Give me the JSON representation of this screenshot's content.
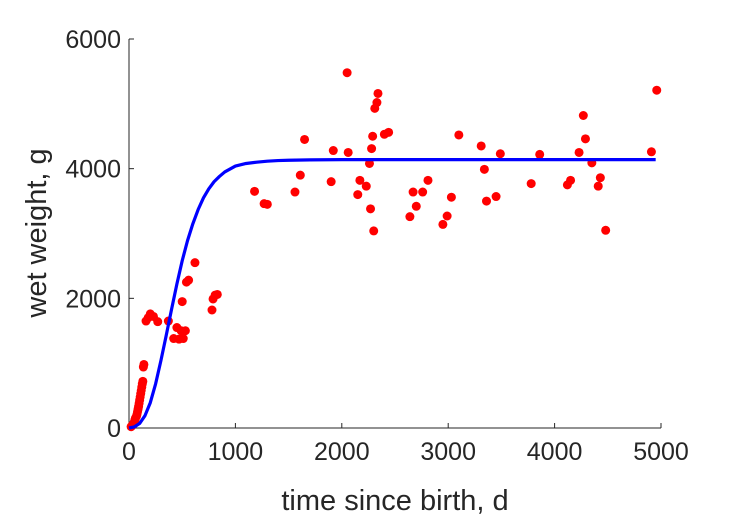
{
  "chart_data": {
    "type": "scatter",
    "title": "",
    "xlabel": "time since birth, d",
    "ylabel": "wet weight, g",
    "xlim": [
      0,
      5000
    ],
    "ylim": [
      0,
      6000
    ],
    "xticks": [
      0,
      1000,
      2000,
      3000,
      4000,
      5000
    ],
    "yticks": [
      0,
      2000,
      4000,
      6000
    ],
    "grid": false,
    "series": [
      {
        "kind": "points",
        "color": "#ff0000",
        "points": [
          [
            20,
            20
          ],
          [
            30,
            40
          ],
          [
            40,
            60
          ],
          [
            50,
            90
          ],
          [
            55,
            120
          ],
          [
            60,
            150
          ],
          [
            70,
            180
          ],
          [
            75,
            210
          ],
          [
            80,
            250
          ],
          [
            85,
            290
          ],
          [
            90,
            330
          ],
          [
            95,
            380
          ],
          [
            100,
            430
          ],
          [
            105,
            480
          ],
          [
            110,
            530
          ],
          [
            115,
            580
          ],
          [
            120,
            630
          ],
          [
            125,
            680
          ],
          [
            130,
            720
          ],
          [
            135,
            940
          ],
          [
            140,
            980
          ],
          [
            160,
            1650
          ],
          [
            180,
            1700
          ],
          [
            200,
            1760
          ],
          [
            230,
            1720
          ],
          [
            270,
            1640
          ],
          [
            370,
            1650
          ],
          [
            420,
            1380
          ],
          [
            450,
            1550
          ],
          [
            470,
            1370
          ],
          [
            490,
            1500
          ],
          [
            500,
            1950
          ],
          [
            510,
            1380
          ],
          [
            530,
            1500
          ],
          [
            540,
            2250
          ],
          [
            560,
            2280
          ],
          [
            620,
            2550
          ],
          [
            780,
            1820
          ],
          [
            790,
            1990
          ],
          [
            810,
            2050
          ],
          [
            830,
            2060
          ],
          [
            1180,
            3650
          ],
          [
            1270,
            3460
          ],
          [
            1300,
            3450
          ],
          [
            1560,
            3640
          ],
          [
            1610,
            3900
          ],
          [
            1650,
            4450
          ],
          [
            1900,
            3800
          ],
          [
            1920,
            4280
          ],
          [
            2050,
            5480
          ],
          [
            2060,
            4250
          ],
          [
            2150,
            3600
          ],
          [
            2170,
            3820
          ],
          [
            2230,
            3730
          ],
          [
            2260,
            4080
          ],
          [
            2270,
            3380
          ],
          [
            2280,
            4310
          ],
          [
            2290,
            4500
          ],
          [
            2300,
            3040
          ],
          [
            2310,
            4930
          ],
          [
            2330,
            5020
          ],
          [
            2340,
            5160
          ],
          [
            2400,
            4530
          ],
          [
            2440,
            4560
          ],
          [
            2640,
            3260
          ],
          [
            2670,
            3640
          ],
          [
            2700,
            3420
          ],
          [
            2760,
            3640
          ],
          [
            2810,
            3820
          ],
          [
            2950,
            3140
          ],
          [
            2990,
            3270
          ],
          [
            3030,
            3560
          ],
          [
            3100,
            4520
          ],
          [
            3310,
            4350
          ],
          [
            3340,
            3990
          ],
          [
            3360,
            3500
          ],
          [
            3450,
            3570
          ],
          [
            3490,
            4230
          ],
          [
            3780,
            3770
          ],
          [
            3860,
            4220
          ],
          [
            4120,
            3750
          ],
          [
            4150,
            3820
          ],
          [
            4230,
            4250
          ],
          [
            4270,
            4820
          ],
          [
            4290,
            4460
          ],
          [
            4350,
            4090
          ],
          [
            4410,
            3730
          ],
          [
            4430,
            3860
          ],
          [
            4480,
            3050
          ],
          [
            4910,
            4260
          ],
          [
            4960,
            5210
          ]
        ]
      },
      {
        "kind": "line",
        "color": "#0000ff",
        "points": [
          [
            0,
            0
          ],
          [
            50,
            17
          ],
          [
            100,
            70
          ],
          [
            150,
            190
          ],
          [
            200,
            390
          ],
          [
            250,
            680
          ],
          [
            300,
            1040
          ],
          [
            350,
            1430
          ],
          [
            400,
            1830
          ],
          [
            450,
            2220
          ],
          [
            500,
            2580
          ],
          [
            550,
            2890
          ],
          [
            600,
            3150
          ],
          [
            650,
            3370
          ],
          [
            700,
            3550
          ],
          [
            750,
            3690
          ],
          [
            800,
            3800
          ],
          [
            850,
            3880
          ],
          [
            900,
            3950
          ],
          [
            1000,
            4040
          ],
          [
            1100,
            4080
          ],
          [
            1200,
            4100
          ],
          [
            1300,
            4115
          ],
          [
            1400,
            4125
          ],
          [
            1500,
            4130
          ],
          [
            1700,
            4135
          ],
          [
            2000,
            4140
          ],
          [
            2500,
            4140
          ],
          [
            3000,
            4140
          ],
          [
            3500,
            4140
          ],
          [
            4000,
            4140
          ],
          [
            4500,
            4140
          ],
          [
            4950,
            4140
          ]
        ]
      }
    ]
  }
}
